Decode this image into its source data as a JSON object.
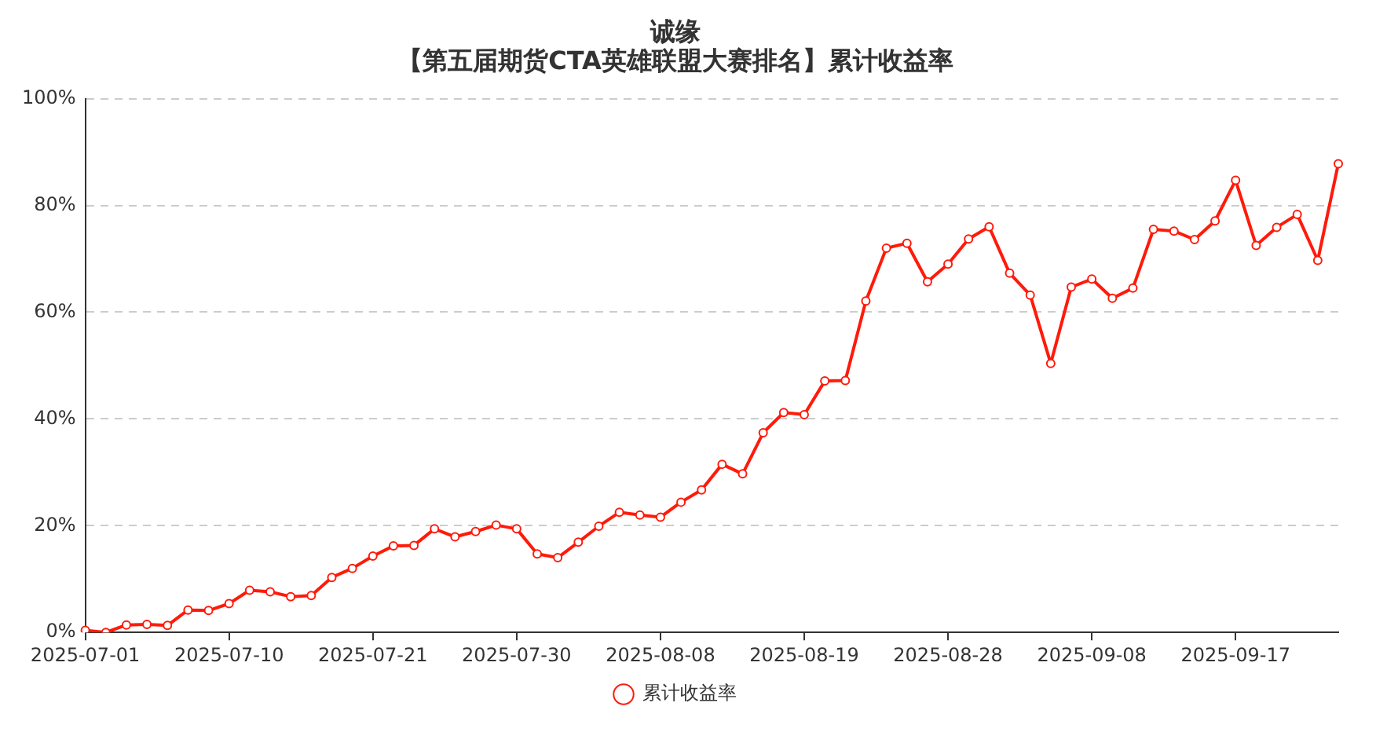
{
  "chart_data": {
    "type": "line",
    "title": "诚缘",
    "subtitle": "【第五届期货CTA英雄联盟大赛排名】累计收益率",
    "categories": [
      "2025-07-01",
      null,
      null,
      null,
      null,
      null,
      null,
      "2025-07-10",
      null,
      null,
      null,
      null,
      null,
      null,
      "2025-07-21",
      null,
      null,
      null,
      null,
      null,
      null,
      "2025-07-30",
      null,
      null,
      null,
      null,
      null,
      null,
      "2025-08-08",
      null,
      null,
      null,
      null,
      null,
      null,
      "2025-08-19",
      null,
      null,
      null,
      null,
      null,
      null,
      "2025-08-28",
      null,
      null,
      null,
      null,
      null,
      null,
      "2025-09-08",
      null,
      null,
      null,
      null,
      null,
      null,
      "2025-09-17",
      null,
      null,
      null,
      null,
      null
    ],
    "series": [
      {
        "name": "累计收益率",
        "color": "#ff1a0a",
        "values": [
          0.4,
          0,
          1.4,
          1.5,
          1.3,
          4.2,
          4.1,
          5.4,
          7.9,
          7.6,
          6.7,
          6.9,
          10.3,
          12.0,
          14.3,
          16.2,
          16.3,
          19.4,
          17.9,
          18.9,
          20.1,
          19.4,
          14.7,
          14.0,
          16.9,
          19.9,
          22.5,
          22.0,
          21.6,
          24.4,
          26.7,
          31.5,
          29.7,
          37.4,
          41.2,
          40.8,
          47.1,
          47.2,
          62.1,
          72.0,
          72.9,
          65.7,
          69.0,
          73.7,
          76.0,
          67.3,
          63.2,
          50.4,
          64.7,
          66.2,
          62.6,
          64.5,
          75.5,
          75.2,
          73.6,
          77.1,
          84.7,
          72.5,
          75.9,
          78.3,
          69.7,
          87.8
        ]
      }
    ],
    "ylim": [
      0,
      100
    ],
    "yticks": [
      {
        "value": 0,
        "label": "0%"
      },
      {
        "value": 20,
        "label": "20%"
      },
      {
        "value": 40,
        "label": "40%"
      },
      {
        "value": 60,
        "label": "60%"
      },
      {
        "value": 80,
        "label": "80%"
      },
      {
        "value": 100,
        "label": "100%"
      }
    ],
    "grid": "y",
    "legend": "bottom",
    "marker": "circle",
    "line_style": "solid"
  }
}
